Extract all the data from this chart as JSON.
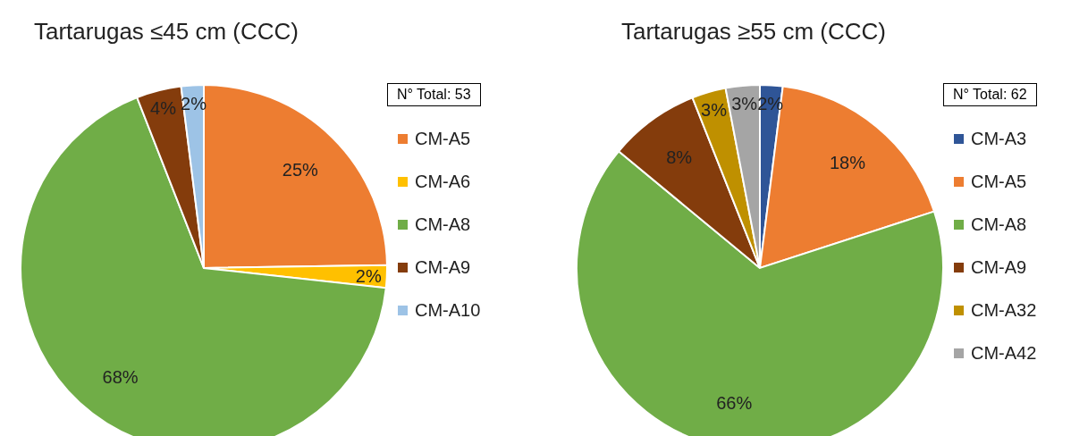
{
  "chart_data": [
    {
      "type": "pie",
      "title": "Tartarugas ≤45 cm (CCC)",
      "categories": [
        "CM-A5",
        "CM-A6",
        "CM-A8",
        "CM-A9",
        "CM-A10"
      ],
      "values": [
        25,
        2,
        68,
        4,
        2
      ],
      "value_labels": [
        "25%",
        "2%",
        "68%",
        "4%",
        "2%"
      ],
      "colors": [
        "#ed7d31",
        "#ffc000",
        "#70ad47",
        "#843c0c",
        "#9dc3e6"
      ],
      "legend": "right",
      "annotations": [
        "N° Total: 53"
      ]
    },
    {
      "type": "pie",
      "title": "Tartarugas ≥55 cm (CCC)",
      "categories": [
        "CM-A3",
        "CM-A5",
        "CM-A8",
        "CM-A9",
        "CM-A32",
        "CM-A42"
      ],
      "values": [
        2,
        18,
        66,
        8,
        3,
        3
      ],
      "value_labels": [
        "2%",
        "18%",
        "66%",
        "8%",
        "3%",
        "3%"
      ],
      "colors": [
        "#2f5597",
        "#ed7d31",
        "#70ad47",
        "#843c0c",
        "#bf9000",
        "#a5a5a5"
      ],
      "legend": "right",
      "annotations": [
        "N° Total: 62"
      ]
    }
  ]
}
